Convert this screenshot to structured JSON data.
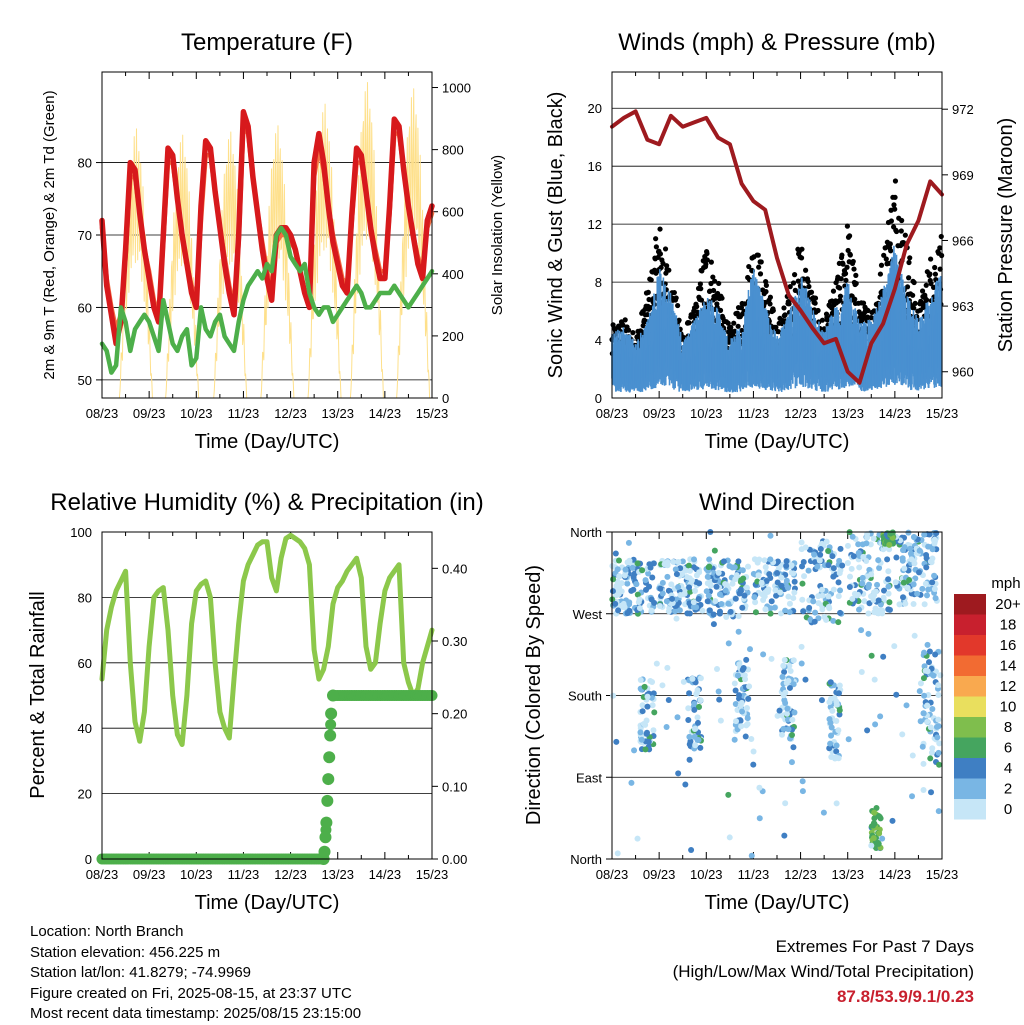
{
  "days": [
    "08/23",
    "09/23",
    "10/23",
    "11/23",
    "12/23",
    "13/23",
    "14/23",
    "15/23"
  ],
  "footer": {
    "location": "Location: North Branch",
    "elevation": "Station elevation: 456.225 m",
    "latlon": "Station lat/lon: 41.8279; -74.9969",
    "created": "Figure created on Fri, 2025-08-15, at 23:37 UTC",
    "latest": "Most recent data timestamp: 2025/08/15 23:15:00"
  },
  "extremes": {
    "title": "Extremes For Past 7 Days",
    "subtitle": "(High/Low/Max Wind/Total Precipitation)",
    "values": "87.8/53.9/9.1/0.23"
  },
  "chart_data": [
    {
      "type": "line",
      "title": "Temperature (F)",
      "xlabel": "Time (Day/UTC)",
      "ylabel": "2m & 9m T (Red, Orange) & 2m Td (Green)",
      "y2label": "Solar Insolation (Yellow)",
      "ylim": [
        47.5,
        92.5
      ],
      "yticks": [
        50,
        60,
        70,
        80
      ],
      "y2lim": [
        0,
        1050
      ],
      "y2ticks": [
        0,
        200,
        400,
        600,
        800,
        1000
      ],
      "x": [
        0,
        0.1,
        0.2,
        0.3,
        0.4,
        0.5,
        0.6,
        0.7,
        0.8,
        0.9,
        1,
        1.1,
        1.2,
        1.3,
        1.4,
        1.5,
        1.6,
        1.7,
        1.8,
        1.9,
        2,
        2.1,
        2.2,
        2.3,
        2.4,
        2.5,
        2.6,
        2.7,
        2.8,
        2.9,
        3,
        3.1,
        3.2,
        3.3,
        3.4,
        3.5,
        3.6,
        3.7,
        3.8,
        3.9,
        4,
        4.1,
        4.2,
        4.3,
        4.4,
        4.5,
        4.6,
        4.7,
        4.8,
        4.9,
        5,
        5.1,
        5.2,
        5.3,
        5.4,
        5.5,
        5.6,
        5.7,
        5.8,
        5.9,
        6,
        6.1,
        6.2,
        6.3,
        6.4,
        6.5,
        6.6,
        6.7,
        6.8,
        6.9,
        7
      ],
      "series": [
        {
          "color": "#d7191c",
          "values": [
            72,
            63,
            59,
            55,
            58,
            68,
            80,
            79,
            73,
            68,
            64,
            60,
            58,
            70,
            82,
            81,
            75,
            70,
            66,
            62,
            60,
            74,
            83,
            82,
            76,
            71,
            66,
            62,
            59,
            70,
            87,
            85,
            78,
            73,
            68,
            64,
            61,
            70,
            71,
            71,
            70,
            68,
            65,
            62,
            60,
            80,
            84,
            80,
            74,
            69,
            66,
            63,
            62,
            73,
            82,
            81,
            76,
            71,
            67,
            64,
            64,
            74,
            86,
            85,
            79,
            74,
            70,
            66,
            64,
            72,
            74
          ]
        },
        {
          "color": "#f46d43",
          "values": [
            71,
            64,
            60,
            57,
            59,
            67,
            78,
            78,
            73,
            68,
            65,
            61,
            59,
            69,
            80,
            80,
            75,
            70,
            66,
            63,
            61,
            72,
            81,
            81,
            76,
            71,
            67,
            63,
            60,
            69,
            85,
            84,
            78,
            73,
            69,
            65,
            62,
            69,
            70,
            70,
            69,
            68,
            65,
            62,
            61,
            78,
            82,
            79,
            74,
            70,
            67,
            64,
            63,
            72,
            80,
            80,
            76,
            71,
            68,
            65,
            65,
            73,
            84,
            84,
            79,
            74,
            70,
            67,
            65,
            71,
            73
          ]
        },
        {
          "color": "#4daf4a",
          "values": [
            55,
            54,
            51,
            52,
            60,
            58,
            54,
            57,
            58,
            59,
            58,
            56,
            54,
            61,
            58,
            55,
            54,
            56,
            57,
            52,
            53,
            60,
            57,
            56,
            58,
            59,
            56,
            55,
            54,
            58,
            61,
            63,
            64,
            65,
            64,
            66,
            65,
            70,
            71,
            70,
            67,
            66,
            65,
            66,
            62,
            60,
            59,
            60,
            60,
            58,
            59,
            60,
            61,
            62,
            63,
            62,
            60,
            60,
            61,
            62,
            62,
            62,
            63,
            62,
            61,
            60,
            61,
            62,
            63,
            64,
            65
          ]
        }
      ],
      "solar": {
        "color": "#fee08b",
        "peaks": [
          870,
          850,
          860,
          880,
          950,
          1020,
          1000
        ],
        "peak_times": [
          0.72,
          1.7,
          2.72,
          3.72,
          4.72,
          5.62,
          6.6
        ]
      }
    },
    {
      "type": "scatter",
      "title": "Winds (mph) & Pressure (mb)",
      "xlabel": "Time (Day/UTC)",
      "ylabel": "Sonic Wind & Gust (Blue, Black)",
      "y2label": "Station Pressure (Maroon)",
      "ylim": [
        0,
        22.5
      ],
      "yticks": [
        0,
        4,
        8,
        12,
        16,
        20
      ],
      "y2lim": [
        958.8,
        973.7
      ],
      "y2ticks": [
        960,
        963,
        966,
        969,
        972
      ],
      "x": [
        0,
        0.25,
        0.5,
        0.75,
        1,
        1.25,
        1.5,
        1.75,
        2,
        2.25,
        2.5,
        2.75,
        3,
        3.25,
        3.5,
        3.75,
        4,
        4.25,
        4.5,
        4.75,
        5,
        5.25,
        5.5,
        5.75,
        6,
        6.25,
        6.5,
        6.75,
        7
      ],
      "wind_mean": [
        2.5,
        2.8,
        2.2,
        3,
        5,
        4.2,
        2.3,
        3,
        4,
        3.5,
        2.2,
        3,
        5,
        3.6,
        2.4,
        3.2,
        5,
        3.5,
        2.6,
        3.6,
        4.5,
        3,
        3,
        4.2,
        6,
        4,
        3,
        4,
        5
      ],
      "gust": [
        4,
        4.5,
        3.5,
        6,
        10,
        7,
        3.8,
        5,
        9,
        6.5,
        3.8,
        5.5,
        9,
        7,
        4,
        6,
        9,
        6,
        4.2,
        6.5,
        10,
        5.5,
        5,
        8,
        13,
        9,
        5,
        8,
        9
      ],
      "pressure": [
        971.2,
        971.6,
        971.9,
        970.6,
        970.4,
        971.7,
        971.2,
        971.4,
        971.6,
        970.7,
        970.4,
        968.6,
        967.8,
        967.4,
        965.2,
        963.5,
        962.8,
        962,
        961.3,
        961.5,
        960,
        959.5,
        961.3,
        962.2,
        963.8,
        965.8,
        966.9,
        968.7,
        968.1
      ]
    },
    {
      "type": "line",
      "title": "Relative Humidity (%) & Precipitation (in)",
      "xlabel": "Time (Day/UTC)",
      "ylabel": "Percent & Total Rainfall",
      "ylim": [
        0,
        100
      ],
      "yticks": [
        0,
        20,
        40,
        60,
        80,
        100
      ],
      "y2lim": [
        0,
        0.45
      ],
      "y2ticks": [
        "0.00",
        "0.10",
        "0.20",
        "0.30",
        "0.40"
      ],
      "x": [
        0,
        0.1,
        0.2,
        0.3,
        0.4,
        0.5,
        0.6,
        0.7,
        0.8,
        0.9,
        1,
        1.1,
        1.2,
        1.3,
        1.4,
        1.5,
        1.6,
        1.7,
        1.8,
        1.9,
        2,
        2.1,
        2.2,
        2.3,
        2.4,
        2.5,
        2.6,
        2.7,
        2.8,
        2.9,
        3,
        3.1,
        3.2,
        3.3,
        3.4,
        3.5,
        3.6,
        3.7,
        3.8,
        3.9,
        4,
        4.1,
        4.2,
        4.3,
        4.4,
        4.5,
        4.6,
        4.7,
        4.8,
        4.9,
        5,
        5.1,
        5.2,
        5.3,
        5.4,
        5.5,
        5.6,
        5.7,
        5.8,
        5.9,
        6,
        6.1,
        6.2,
        6.3,
        6.4,
        6.5,
        6.6,
        6.7,
        6.8,
        6.9,
        7
      ],
      "rh": [
        55,
        70,
        77,
        82,
        85,
        88,
        60,
        42,
        36,
        45,
        65,
        80,
        82,
        83,
        70,
        50,
        38,
        35,
        50,
        72,
        82,
        84,
        85,
        80,
        60,
        45,
        40,
        37,
        55,
        72,
        85,
        90,
        93,
        96,
        97,
        97,
        86,
        82,
        92,
        98,
        99,
        98,
        97,
        95,
        90,
        64,
        55,
        58,
        65,
        78,
        83,
        85,
        88,
        90,
        92,
        86,
        65,
        58,
        60,
        72,
        82,
        86,
        88,
        90,
        60,
        54,
        50,
        52,
        60,
        65,
        70
      ],
      "precip_x": [
        0,
        4.7,
        4.72,
        4.74,
        4.76,
        4.78,
        4.8,
        4.82,
        4.84,
        4.86,
        4.9,
        7
      ],
      "precip": [
        0,
        0,
        0.01,
        0.03,
        0.05,
        0.08,
        0.11,
        0.14,
        0.17,
        0.2,
        0.225,
        0.225
      ]
    },
    {
      "type": "scatter",
      "title": "Wind Direction",
      "xlabel": "Time (Day/UTC)",
      "ylabel": "Direction (Colored By Speed)",
      "direction_labels": [
        "North",
        "West",
        "South",
        "East",
        "North"
      ],
      "legend_title": "mph",
      "legend_labels": [
        "20+",
        "18",
        "16",
        "14",
        "12",
        "10",
        "8",
        "6",
        "4",
        "2",
        "0"
      ],
      "legend_colors": [
        "#9e1a1f",
        "#c8202e",
        "#e2382b",
        "#f26b32",
        "#f9a94f",
        "#e9df5e",
        "#7fbe4d",
        "#45a55f",
        "#3f7fc3",
        "#79b6e4",
        "#c6e6f7"
      ],
      "clusters": [
        {
          "x0": 0.0,
          "x1": 0.9,
          "dir0": 270,
          "dir1": 330,
          "n": 110
        },
        {
          "x0": 1.0,
          "x1": 1.9,
          "dir0": 270,
          "dir1": 330,
          "n": 110
        },
        {
          "x0": 2.0,
          "x1": 2.9,
          "dir0": 265,
          "dir1": 330,
          "n": 110
        },
        {
          "x0": 3.0,
          "x1": 3.9,
          "dir0": 270,
          "dir1": 330,
          "n": 100
        },
        {
          "x0": 4.0,
          "x1": 4.9,
          "dir0": 260,
          "dir1": 350,
          "n": 90
        },
        {
          "x0": 5.0,
          "x1": 5.9,
          "dir0": 270,
          "dir1": 360,
          "n": 110
        },
        {
          "x0": 6.0,
          "x1": 6.9,
          "dir0": 280,
          "dir1": 360,
          "n": 120
        },
        {
          "x0": 0.6,
          "x1": 0.9,
          "dir0": 120,
          "dir1": 200,
          "n": 55
        },
        {
          "x0": 1.6,
          "x1": 1.9,
          "dir0": 120,
          "dir1": 200,
          "n": 50
        },
        {
          "x0": 2.6,
          "x1": 2.9,
          "dir0": 130,
          "dir1": 220,
          "n": 55
        },
        {
          "x0": 3.6,
          "x1": 3.9,
          "dir0": 130,
          "dir1": 220,
          "n": 55
        },
        {
          "x0": 4.6,
          "x1": 4.85,
          "dir0": 110,
          "dir1": 200,
          "n": 45
        },
        {
          "x0": 5.5,
          "x1": 5.7,
          "dir0": 10,
          "dir1": 60,
          "n": 35
        },
        {
          "x0": 5.75,
          "x1": 6.0,
          "dir0": 345,
          "dir1": 360,
          "n": 35
        },
        {
          "x0": 6.6,
          "x1": 6.95,
          "dir0": 100,
          "dir1": 230,
          "n": 60
        },
        {
          "x0": 0.0,
          "x1": 7.0,
          "dir0": 0,
          "dir1": 360,
          "n": 120
        }
      ]
    }
  ]
}
